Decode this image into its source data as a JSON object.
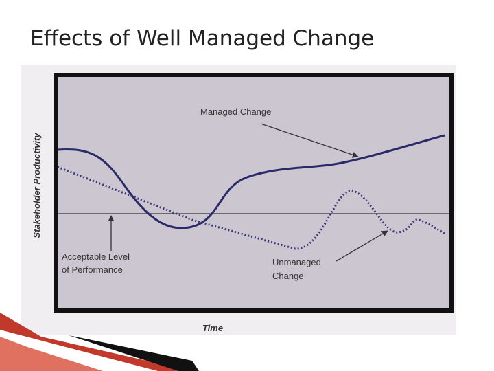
{
  "header": {
    "title": "Effects of Well Managed Change"
  },
  "figure": {
    "y_axis_label": "Stakeholder Productivity",
    "x_axis_label": "Time",
    "annotations": {
      "managed": [
        "Managed Change"
      ],
      "acceptable": [
        "Acceptable Level",
        "of Performance"
      ],
      "unmanaged": [
        "Unmanaged",
        "Change"
      ]
    }
  }
}
